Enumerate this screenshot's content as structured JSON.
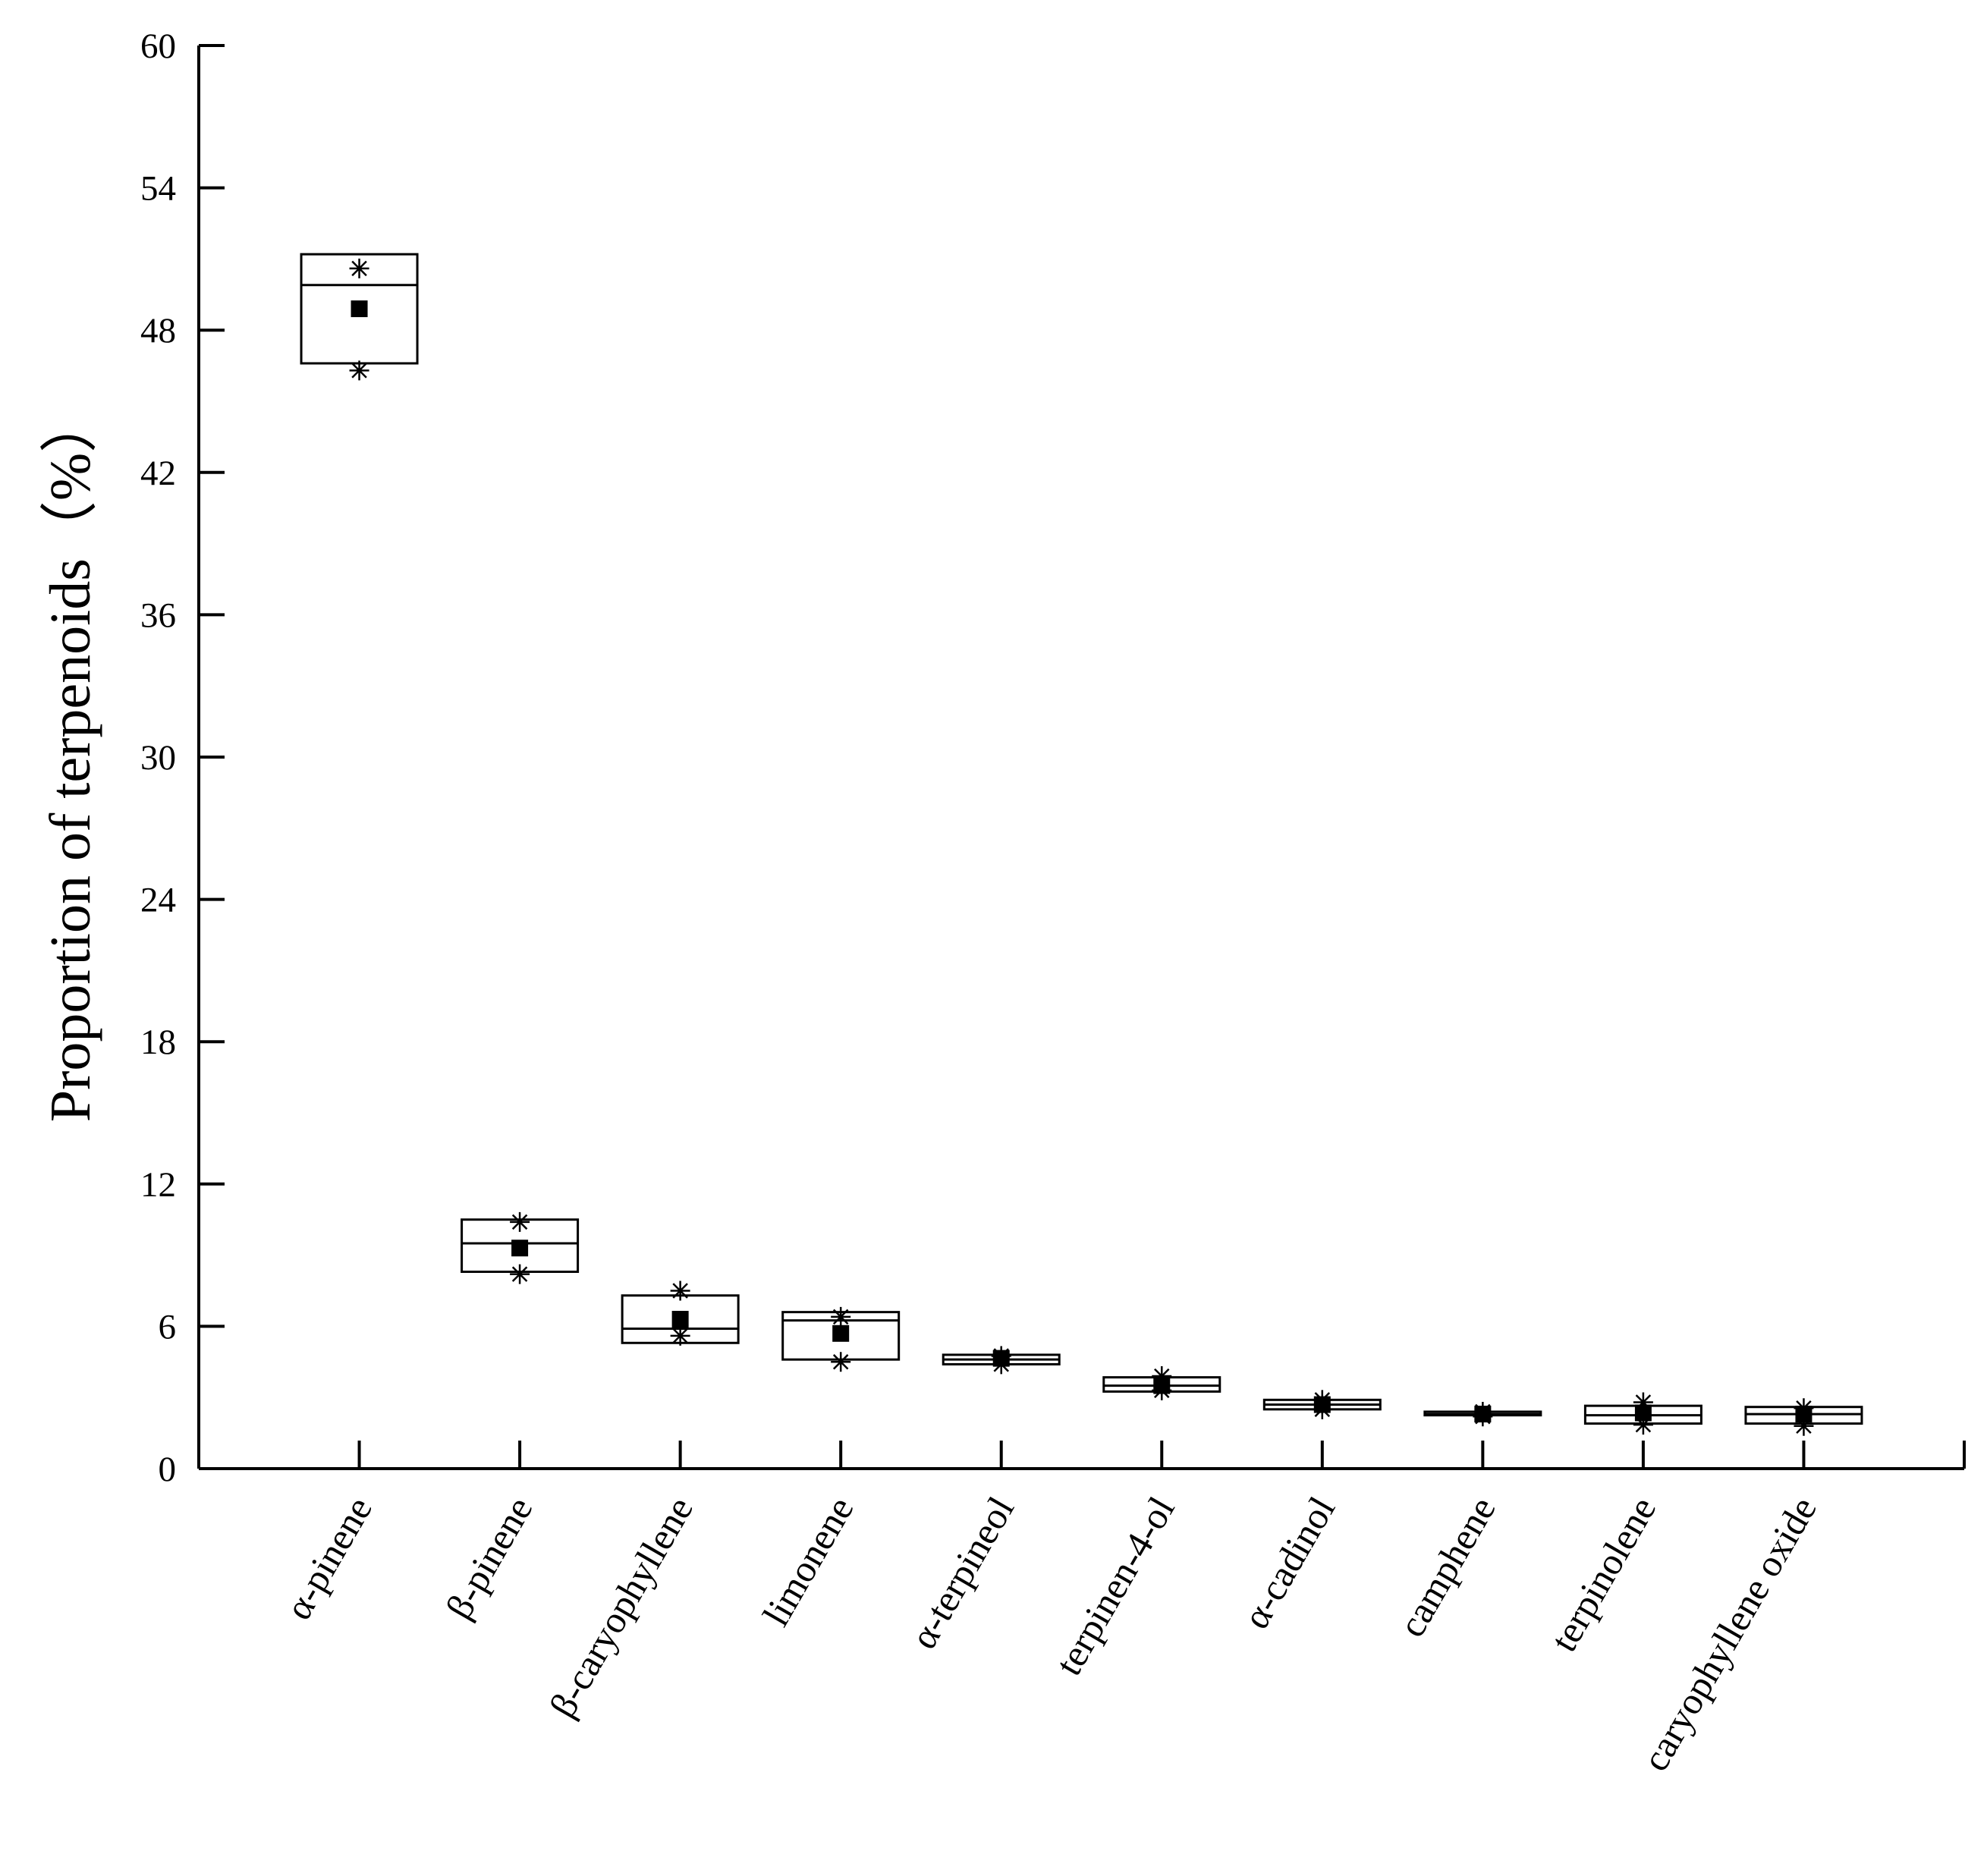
{
  "chart_data": {
    "type": "box",
    "y_label": "Proportion of terpenoids（%）",
    "categories": [
      "α-pinene",
      "β-pinene",
      "β-caryophyllene",
      "limonene",
      "α-terpineol",
      "terpinen-4-ol",
      "α-cadinol",
      "camphene",
      "terpinolene",
      "caryophyllene oxide"
    ],
    "q1": [
      46.6,
      8.3,
      5.3,
      4.6,
      4.4,
      3.25,
      2.5,
      2.25,
      1.9,
      1.9
    ],
    "median": [
      49.9,
      9.5,
      5.9,
      6.25,
      4.6,
      3.5,
      2.7,
      2.3,
      2.25,
      2.3
    ],
    "q3": [
      51.2,
      10.5,
      7.3,
      6.6,
      4.8,
      3.85,
      2.9,
      2.4,
      2.65,
      2.6
    ],
    "mean": [
      48.9,
      9.3,
      6.3,
      5.7,
      4.65,
      3.5,
      2.7,
      2.3,
      2.35,
      2.3
    ],
    "min": [
      46.3,
      8.2,
      5.6,
      4.5,
      4.4,
      3.3,
      2.5,
      2.2,
      1.85,
      1.8
    ],
    "max": [
      50.6,
      10.4,
      7.5,
      6.4,
      4.75,
      3.9,
      2.9,
      2.4,
      2.8,
      2.55
    ],
    "ylim": [
      0,
      60
    ],
    "yticks": [
      0,
      6,
      12,
      18,
      24,
      30,
      36,
      42,
      48,
      54,
      60
    ],
    "color": "#000000",
    "box_fill": "#ffffff"
  }
}
